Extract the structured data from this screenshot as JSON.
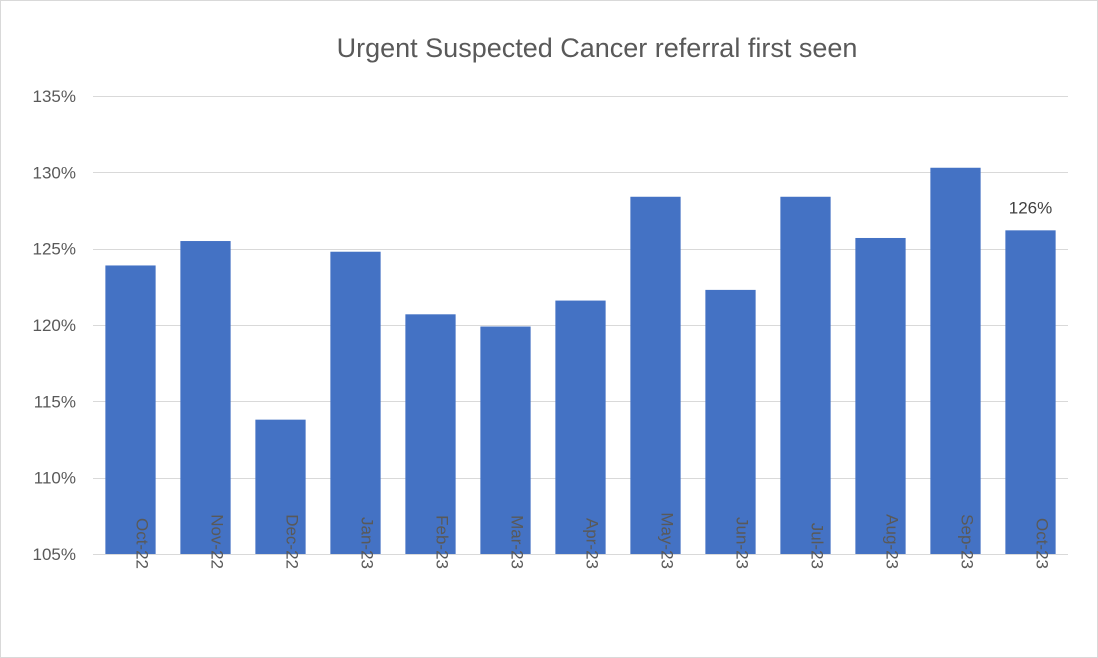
{
  "chart_data": {
    "type": "bar",
    "title": "Urgent Suspected Cancer referral first seen",
    "xlabel": "",
    "ylabel": "",
    "categories": [
      "Oct-22",
      "Nov-22",
      "Dec-22",
      "Jan-23",
      "Feb-23",
      "Mar-23",
      "Apr-23",
      "May-23",
      "Jun-23",
      "Jul-23",
      "Aug-23",
      "Sep-23",
      "Oct-23"
    ],
    "values": [
      123.9,
      125.5,
      113.8,
      124.8,
      120.7,
      119.9,
      121.6,
      128.4,
      122.3,
      128.4,
      125.7,
      130.3,
      126.2
    ],
    "value_format": "percent",
    "ylim": [
      105,
      135
    ],
    "yticks": [
      105,
      110,
      115,
      120,
      125,
      130,
      135
    ],
    "ytick_labels": [
      "105%",
      "110%",
      "115%",
      "120%",
      "125%",
      "130%",
      "135%"
    ],
    "grid": true,
    "legend": "none",
    "bar_color": "#4472c4",
    "grid_color": "#d9d9d9",
    "data_labels": [
      {
        "category": "Oct-23",
        "text": "126%"
      }
    ]
  }
}
